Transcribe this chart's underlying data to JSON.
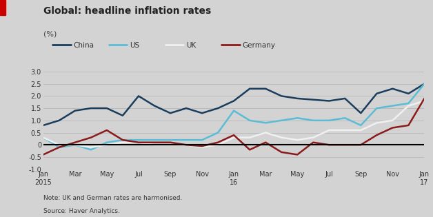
{
  "title": "Global: headline inflation rates",
  "ylabel": "(%)",
  "background_color": "#d3d3d3",
  "plot_bg_color": "#d3d3d3",
  "ylim": [
    -1.0,
    3.0
  ],
  "yticks": [
    -1.0,
    -0.5,
    0.0,
    0.5,
    1.0,
    1.5,
    2.0,
    2.5,
    3.0
  ],
  "note1": "Note: UK and German rates are harmonised.",
  "note2": "Source: Haver Analytics.",
  "months": [
    0,
    1,
    2,
    3,
    4,
    5,
    6,
    7,
    8,
    9,
    10,
    11,
    12,
    13,
    14,
    15,
    16,
    17,
    18,
    19,
    20,
    21,
    22,
    23,
    24
  ],
  "xtick_positions": [
    0,
    2,
    4,
    6,
    8,
    10,
    12,
    14,
    16,
    18,
    20,
    22,
    24
  ],
  "xtick_labels": [
    "Jan\n2015",
    "Mar",
    "May",
    "Jul",
    "Sep",
    "Nov",
    "Jan\n16",
    "Mar",
    "May",
    "Jul",
    "Sep",
    "Nov",
    "Jan\n17"
  ],
  "series": {
    "China": {
      "color": "#1a3d5c",
      "linewidth": 1.8,
      "values": [
        0.8,
        1.0,
        1.4,
        1.5,
        1.5,
        1.2,
        2.0,
        1.6,
        1.3,
        1.5,
        1.3,
        1.5,
        1.8,
        2.3,
        2.3,
        2.0,
        1.9,
        1.85,
        1.8,
        1.9,
        1.3,
        2.1,
        2.3,
        2.1,
        2.5
      ]
    },
    "US": {
      "color": "#5bbcd6",
      "linewidth": 1.8,
      "values": [
        0.3,
        -0.1,
        0.0,
        -0.2,
        0.1,
        0.2,
        0.2,
        0.2,
        0.2,
        0.2,
        0.2,
        0.5,
        1.4,
        1.0,
        0.9,
        1.0,
        1.1,
        1.0,
        1.0,
        1.1,
        0.8,
        1.5,
        1.6,
        1.7,
        2.5
      ]
    },
    "UK": {
      "color": "#f0f0f0",
      "linewidth": 1.8,
      "values": [
        0.3,
        0.0,
        0.0,
        -0.1,
        0.0,
        0.1,
        0.1,
        0.0,
        0.0,
        0.0,
        -0.1,
        0.0,
        0.3,
        0.3,
        0.5,
        0.3,
        0.2,
        0.3,
        0.6,
        0.6,
        0.6,
        0.9,
        1.0,
        1.6,
        1.8
      ]
    },
    "Germany": {
      "color": "#8b1a1a",
      "linewidth": 1.8,
      "values": [
        -0.4,
        -0.1,
        0.1,
        0.3,
        0.6,
        0.2,
        0.1,
        0.1,
        0.1,
        0.0,
        -0.05,
        0.1,
        0.4,
        -0.2,
        0.1,
        -0.3,
        -0.4,
        0.1,
        0.0,
        0.0,
        0.0,
        0.4,
        0.7,
        0.8,
        1.9
      ]
    }
  },
  "legend_entries": [
    "China",
    "US",
    "UK",
    "Germany"
  ],
  "red_bar_color": "#cc0000",
  "red_bar_x": 0,
  "red_bar_width": 5,
  "red_bar_height": 20
}
